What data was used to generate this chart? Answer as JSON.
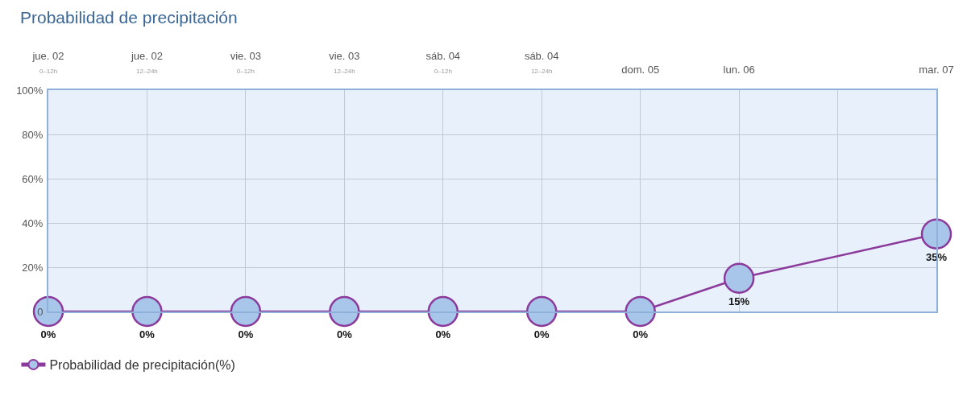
{
  "chart_data": {
    "type": "line",
    "title": "Probabilidad de precipitación",
    "categories": [
      "jue. 02\n0–12h",
      "jue. 02\n12–24h",
      "vie. 03\n0–12h",
      "vie. 03\n12–24h",
      "sáb. 04\n0–12h",
      "sáb. 04\n12–24h",
      "dom. 05",
      "lun. 06",
      null,
      "mar. 07"
    ],
    "ylim": [
      0,
      100
    ],
    "yticks": [
      0,
      {
        "value": 20,
        "label": "20%"
      },
      {
        "value": 40,
        "label": "40%"
      },
      {
        "value": 60,
        "label": "60%"
      },
      {
        "value": 80,
        "label": "80%"
      },
      {
        "value": 100,
        "label": "100%"
      }
    ],
    "series": [
      {
        "name": "Probabilidad de precipitación(%)",
        "color": "#8b3a9c",
        "values": [
          0,
          0,
          0,
          0,
          0,
          0,
          0,
          15,
          null,
          35
        ],
        "value_labels": [
          "0%",
          "0%",
          "0%",
          "0%",
          "0%",
          "0%",
          "0%",
          "15%",
          null,
          "35%"
        ]
      }
    ],
    "grid": true,
    "legend": "bottom left",
    "marker": "circle",
    "line_style": "solid"
  }
}
